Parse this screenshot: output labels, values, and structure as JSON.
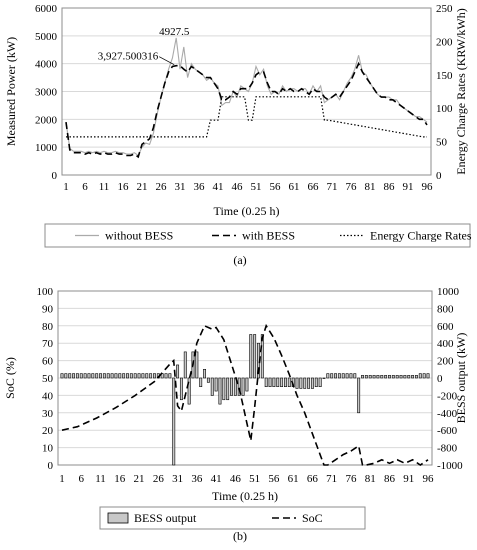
{
  "chart_data": [
    {
      "type": "line",
      "caption": "(a)",
      "xlabel": "Time (0.25 h)",
      "ylabel_left": "Measured Power (kW)",
      "ylabel_right": "Energy Charge Rates (KRW/kWh)",
      "ylim_left": [
        0,
        6000
      ],
      "ylim_right": [
        0,
        250
      ],
      "yticks_left": [
        0,
        1000,
        2000,
        3000,
        4000,
        5000,
        6000
      ],
      "yticks_right": [
        0,
        50,
        100,
        150,
        200,
        250
      ],
      "xlim": [
        1,
        96
      ],
      "xticks": [
        1,
        6,
        11,
        16,
        21,
        26,
        31,
        36,
        41,
        46,
        51,
        56,
        61,
        66,
        71,
        76,
        81,
        86,
        91,
        96
      ],
      "grid": true,
      "legend_position": "bottom",
      "annotations": [
        {
          "text": "4927.5",
          "x": 30,
          "y": 4927.5
        },
        {
          "text": "3,927.500316",
          "x": 30,
          "y": 3927.5
        }
      ],
      "series": [
        {
          "name": "without BESS",
          "style": "solid",
          "color": "#aaaaaa",
          "axis": "left",
          "x": [
            1,
            2,
            3,
            4,
            5,
            6,
            7,
            8,
            9,
            10,
            11,
            12,
            13,
            14,
            15,
            16,
            17,
            18,
            19,
            20,
            21,
            22,
            23,
            24,
            25,
            26,
            27,
            28,
            29,
            30,
            31,
            32,
            33,
            34,
            35,
            36,
            37,
            38,
            39,
            40,
            41,
            42,
            43,
            44,
            45,
            46,
            47,
            48,
            49,
            50,
            51,
            52,
            53,
            54,
            55,
            56,
            57,
            58,
            59,
            60,
            61,
            62,
            63,
            64,
            65,
            66,
            67,
            68,
            69,
            70,
            71,
            72,
            73,
            74,
            75,
            76,
            77,
            78,
            79,
            80,
            81,
            82,
            83,
            84,
            85,
            86,
            87,
            88,
            89,
            90,
            91,
            92,
            93,
            94,
            95,
            96
          ],
          "values": [
            1900,
            950,
            850,
            850,
            850,
            800,
            850,
            800,
            850,
            800,
            850,
            800,
            800,
            850,
            800,
            800,
            750,
            750,
            800,
            700,
            1000,
            1150,
            1100,
            1500,
            2200,
            2800,
            3300,
            3800,
            4200,
            4927.5,
            3800,
            4600,
            3500,
            4000,
            3800,
            3700,
            3600,
            3400,
            3500,
            3300,
            3200,
            2500,
            2600,
            2600,
            3000,
            2800,
            3200,
            3100,
            3000,
            3300,
            3900,
            3600,
            3800,
            3200,
            2900,
            3000,
            2900,
            3200,
            3000,
            3100,
            3100,
            3000,
            3100,
            3100,
            2900,
            3200,
            3000,
            3200,
            2600,
            2700,
            2800,
            2900,
            2700,
            3000,
            3300,
            3500,
            3800,
            4300,
            3700,
            3600,
            3300,
            3100,
            2900,
            2800,
            2800,
            2800,
            2700,
            2700,
            2500,
            2400,
            2300,
            2200,
            2100,
            2100,
            2000,
            1900
          ]
        },
        {
          "name": "with BESS",
          "style": "dashed",
          "color": "#000000",
          "axis": "left",
          "x": [
            1,
            2,
            3,
            4,
            5,
            6,
            7,
            8,
            9,
            10,
            11,
            12,
            13,
            14,
            15,
            16,
            17,
            18,
            19,
            20,
            21,
            22,
            23,
            24,
            25,
            26,
            27,
            28,
            29,
            30,
            31,
            32,
            33,
            34,
            35,
            36,
            37,
            38,
            39,
            40,
            41,
            42,
            43,
            44,
            45,
            46,
            47,
            48,
            49,
            50,
            51,
            52,
            53,
            54,
            55,
            56,
            57,
            58,
            59,
            60,
            61,
            62,
            63,
            64,
            65,
            66,
            67,
            68,
            69,
            70,
            71,
            72,
            73,
            74,
            75,
            76,
            77,
            78,
            79,
            80,
            81,
            82,
            83,
            84,
            85,
            86,
            87,
            88,
            89,
            90,
            91,
            92,
            93,
            94,
            95,
            96
          ],
          "values": [
            1900,
            900,
            800,
            800,
            800,
            750,
            800,
            750,
            800,
            750,
            800,
            750,
            750,
            800,
            750,
            750,
            700,
            700,
            750,
            650,
            1100,
            1200,
            1300,
            1700,
            2300,
            2800,
            3300,
            3700,
            3900,
            3927.5,
            3927.5,
            3800,
            3700,
            3900,
            3800,
            3700,
            3600,
            3500,
            3500,
            3300,
            3100,
            2700,
            2700,
            2800,
            3000,
            2900,
            3100,
            3100,
            3100,
            3300,
            3600,
            3700,
            3700,
            3300,
            3000,
            3000,
            2900,
            3100,
            3000,
            3100,
            3000,
            3000,
            3100,
            3000,
            2900,
            3100,
            3000,
            3000,
            2800,
            2700,
            2800,
            2900,
            2800,
            3000,
            3200,
            3400,
            3700,
            4000,
            3700,
            3500,
            3300,
            3100,
            2900,
            2800,
            2800,
            2700,
            2700,
            2600,
            2500,
            2400,
            2300,
            2200,
            2100,
            2000,
            2000,
            1800
          ]
        },
        {
          "name": "Energy Charge Rates",
          "style": "dotted",
          "color": "#000000",
          "axis": "right",
          "x": [
            1,
            37,
            38,
            39,
            41,
            42,
            48,
            49,
            50,
            51,
            54,
            55,
            68,
            69,
            70,
            95,
            96
          ],
          "values": [
            57,
            57,
            57,
            82,
            82,
            117,
            117,
            82,
            82,
            117,
            117,
            117,
            117,
            82,
            82,
            57,
            57
          ]
        }
      ]
    },
    {
      "type": "bar",
      "caption": "(b)",
      "xlabel": "Time (0.25 h)",
      "ylabel_left": "SoC (%)",
      "ylabel_right": "BESS output (kW)",
      "ylim_left": [
        0,
        100
      ],
      "ylim_right": [
        -1000,
        1000
      ],
      "yticks_left": [
        0,
        10,
        20,
        30,
        40,
        50,
        60,
        70,
        80,
        90,
        100
      ],
      "yticks_right": [
        -1000,
        -800,
        -600,
        -400,
        -200,
        0,
        200,
        400,
        600,
        800,
        1000
      ],
      "xlim": [
        1,
        96
      ],
      "xticks": [
        1,
        6,
        11,
        16,
        21,
        26,
        31,
        36,
        41,
        46,
        51,
        56,
        61,
        66,
        71,
        76,
        81,
        86,
        91,
        96
      ],
      "grid": true,
      "legend_position": "bottom",
      "series": [
        {
          "name": "BESS output",
          "style": "bar",
          "color": "#c8c8c8",
          "axis": "right",
          "x": [
            1,
            2,
            3,
            4,
            5,
            6,
            7,
            8,
            9,
            10,
            11,
            12,
            13,
            14,
            15,
            16,
            17,
            18,
            19,
            20,
            21,
            22,
            23,
            24,
            25,
            26,
            27,
            28,
            29,
            30,
            31,
            32,
            33,
            34,
            35,
            36,
            37,
            38,
            39,
            40,
            41,
            42,
            43,
            44,
            45,
            46,
            47,
            48,
            49,
            50,
            51,
            52,
            53,
            54,
            55,
            56,
            57,
            58,
            59,
            60,
            61,
            62,
            63,
            64,
            65,
            66,
            67,
            68,
            69,
            70,
            71,
            72,
            73,
            74,
            75,
            76,
            77,
            78,
            79,
            80,
            81,
            82,
            83,
            84,
            85,
            86,
            87,
            88,
            89,
            90,
            91,
            92,
            93,
            94,
            95,
            96
          ],
          "values": [
            50,
            50,
            50,
            50,
            50,
            50,
            50,
            50,
            50,
            50,
            50,
            50,
            50,
            50,
            50,
            50,
            50,
            50,
            50,
            50,
            50,
            50,
            50,
            50,
            50,
            50,
            50,
            50,
            50,
            -1000,
            150,
            -250,
            300,
            -300,
            300,
            300,
            -100,
            100,
            -50,
            -200,
            -150,
            -300,
            -250,
            -250,
            -200,
            -200,
            -200,
            -200,
            -150,
            500,
            500,
            400,
            500,
            -100,
            -100,
            -100,
            -100,
            -100,
            -100,
            -100,
            -100,
            -120,
            -120,
            -120,
            -120,
            -120,
            -100,
            -100,
            0,
            50,
            50,
            50,
            50,
            50,
            50,
            50,
            50,
            -400,
            30,
            30,
            30,
            30,
            30,
            30,
            30,
            30,
            30,
            30,
            30,
            30,
            30,
            30,
            30,
            50,
            50,
            50
          ]
        },
        {
          "name": "SoC",
          "style": "dashed",
          "color": "#000000",
          "axis": "left",
          "x": [
            1,
            5,
            10,
            15,
            20,
            25,
            29,
            30,
            31,
            32,
            35,
            36,
            38,
            40,
            41,
            43,
            45,
            47,
            48,
            49,
            50,
            51,
            52,
            53,
            54,
            56,
            58,
            60,
            62,
            64,
            66,
            68,
            69,
            70,
            72,
            74,
            76,
            78,
            79,
            80,
            82,
            84,
            86,
            88,
            90,
            92,
            94,
            96
          ],
          "values": [
            20,
            22,
            27,
            33,
            40,
            48,
            58,
            60,
            34,
            31,
            58,
            70,
            80,
            78,
            79,
            72,
            58,
            44,
            34,
            24,
            14,
            33,
            54,
            73,
            80,
            73,
            63,
            52,
            40,
            30,
            18,
            6,
            0,
            0,
            3,
            6,
            8,
            11,
            0,
            0,
            1,
            3,
            1,
            3,
            1,
            3,
            0,
            3
          ]
        }
      ]
    }
  ]
}
